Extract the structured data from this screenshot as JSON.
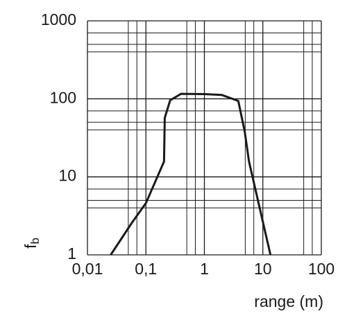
{
  "chart_data": {
    "type": "line",
    "xlabel": "range (m)",
    "ylabel": {
      "text": "f",
      "subscript": "b"
    },
    "log_x": true,
    "log_y": true,
    "grid": true,
    "xlim": [
      0.01,
      100
    ],
    "ylim": [
      1,
      1000
    ],
    "xticks": [
      {
        "value": 0.01,
        "label": "0,01"
      },
      {
        "value": 0.1,
        "label": "0,1"
      },
      1,
      10,
      100
    ],
    "yticks": [
      1,
      10,
      100,
      1000
    ],
    "x_minor_grid": [
      0.05,
      0.07,
      0.5,
      0.7,
      5,
      7,
      50,
      70
    ],
    "y_minor_grid": [
      4,
      5,
      7,
      40,
      50,
      70,
      400,
      500,
      700
    ],
    "series": [
      {
        "color": "#1a1a1a",
        "x": [
          0.025,
          0.058,
          0.1,
          0.204,
          0.21,
          0.26,
          0.4,
          1,
          2,
          3.8,
          4.9,
          5.8,
          13.5
        ],
        "values": [
          1,
          2.6,
          4.6,
          15.7,
          57,
          96,
          116,
          115,
          112,
          94,
          38,
          15.7,
          1
        ]
      }
    ]
  }
}
